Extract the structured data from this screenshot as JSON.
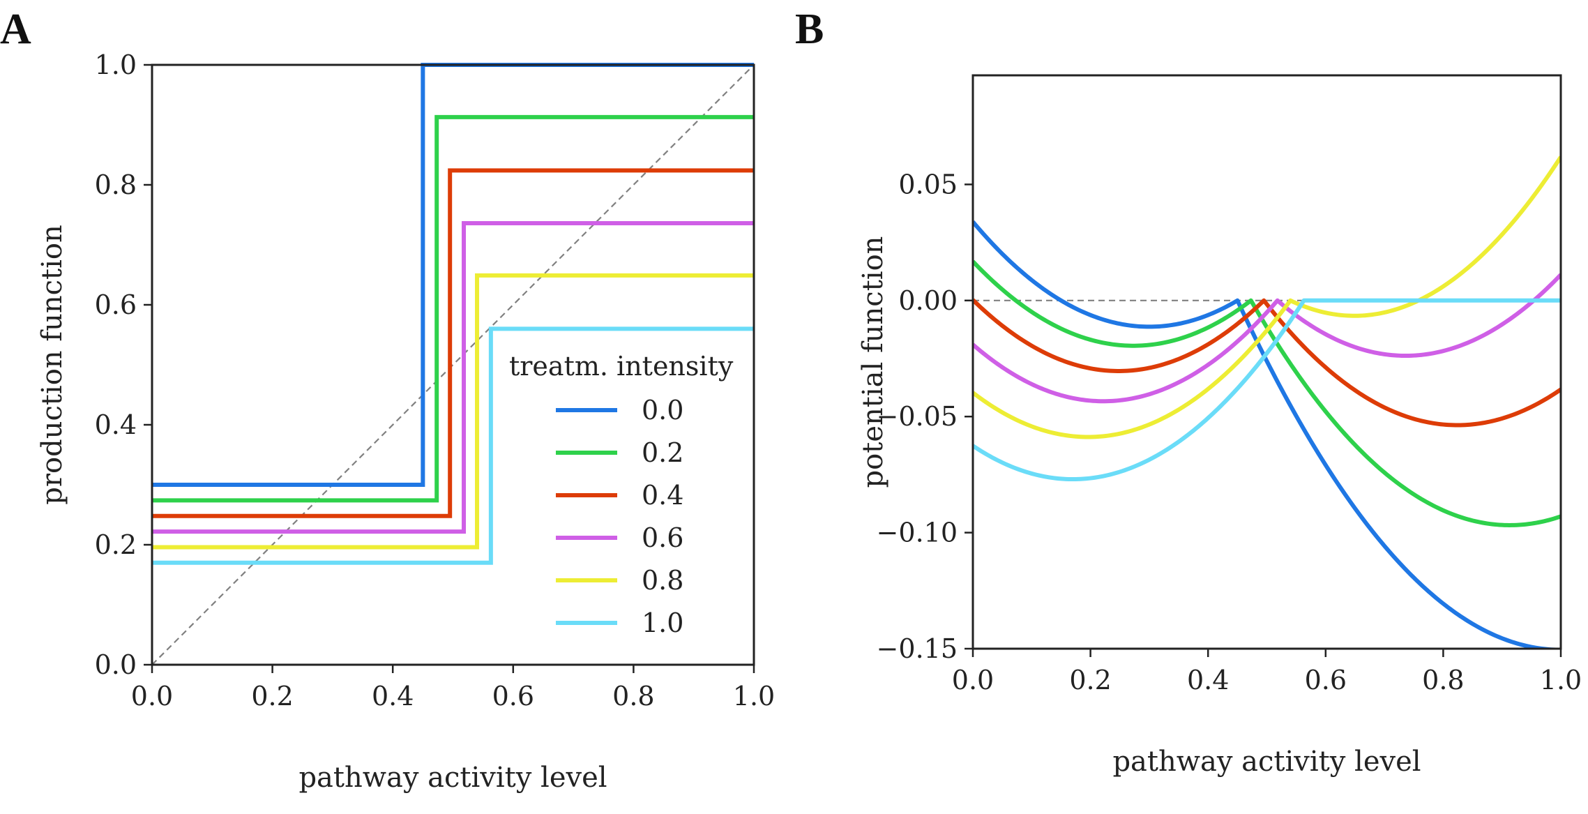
{
  "panels": {
    "A": {
      "letter": "A"
    },
    "B": {
      "letter": "B"
    }
  },
  "chart_data": [
    {
      "id": "A",
      "type": "line",
      "xlabel": "pathway activity level",
      "ylabel": "production function",
      "xlim": [
        0.0,
        1.0
      ],
      "ylim": [
        0.0,
        1.0
      ],
      "xticks": [
        "0.0",
        "0.2",
        "0.4",
        "0.6",
        "0.8",
        "1.0"
      ],
      "yticks": [
        "0.0",
        "0.2",
        "0.4",
        "0.6",
        "0.8",
        "1.0"
      ],
      "reference_line": {
        "style": "dashed",
        "color": "#808080",
        "points": [
          [
            0,
            0
          ],
          [
            1,
            1
          ]
        ]
      },
      "legend": {
        "title": "treatm. intensity",
        "placement": "lower-right"
      },
      "series": [
        {
          "name": "0.0",
          "color": "#1f77e4",
          "threshold": 0.45,
          "low": 0.3,
          "high": 1.0
        },
        {
          "name": "0.2",
          "color": "#2ed14b",
          "threshold": 0.473,
          "low": 0.274,
          "high": 0.913
        },
        {
          "name": "0.4",
          "color": "#dd3c07",
          "threshold": 0.495,
          "low": 0.248,
          "high": 0.824
        },
        {
          "name": "0.6",
          "color": "#cf5fe6",
          "threshold": 0.518,
          "low": 0.222,
          "high": 0.736
        },
        {
          "name": "0.8",
          "color": "#eded34",
          "threshold": 0.54,
          "low": 0.196,
          "high": 0.649
        },
        {
          "name": "1.0",
          "color": "#6adcf8",
          "threshold": 0.563,
          "low": 0.17,
          "high": 0.56
        }
      ]
    },
    {
      "id": "B",
      "type": "line",
      "xlabel": "pathway activity level",
      "ylabel": "potential function",
      "xlim": [
        0.0,
        1.0
      ],
      "ylim": [
        -0.15,
        0.097
      ],
      "xticks": [
        "0.0",
        "0.2",
        "0.4",
        "0.6",
        "0.8",
        "1.0"
      ],
      "yticks": [
        "0.05",
        "0.00",
        "−0.05",
        "−0.10",
        "−0.15"
      ],
      "ytick_values": [
        0.05,
        0.0,
        -0.05,
        -0.1,
        -0.15
      ],
      "reference_line": {
        "style": "dashed",
        "color": "#808080",
        "y": 0.0
      },
      "series": [
        {
          "name": "0.0",
          "color": "#1f77e4",
          "threshold": 0.45,
          "left_min": [
            0.3,
            -0.0113
          ],
          "right_min": [
            1.0,
            -0.1505
          ]
        },
        {
          "name": "0.2",
          "color": "#2ed14b",
          "threshold": 0.473,
          "left_min": [
            0.273,
            -0.0195
          ],
          "right_min": [
            0.913,
            -0.0968
          ]
        },
        {
          "name": "0.4",
          "color": "#dd3c07",
          "threshold": 0.495,
          "left_min": [
            0.248,
            -0.0304
          ],
          "right_min": [
            0.824,
            -0.0537
          ]
        },
        {
          "name": "0.6",
          "color": "#cf5fe6",
          "threshold": 0.518,
          "left_min": [
            0.222,
            -0.0434
          ],
          "right_min": [
            0.736,
            -0.0238
          ]
        },
        {
          "name": "0.8",
          "color": "#eded34",
          "threshold": 0.54,
          "left_min": [
            0.196,
            -0.0588
          ],
          "right_min": [
            0.649,
            -0.0066
          ]
        },
        {
          "name": "1.0",
          "color": "#6adcf8",
          "threshold": 0.563,
          "left_min": [
            0.17,
            -0.077
          ],
          "right_min": [
            0.56,
            0.0
          ]
        }
      ]
    }
  ]
}
